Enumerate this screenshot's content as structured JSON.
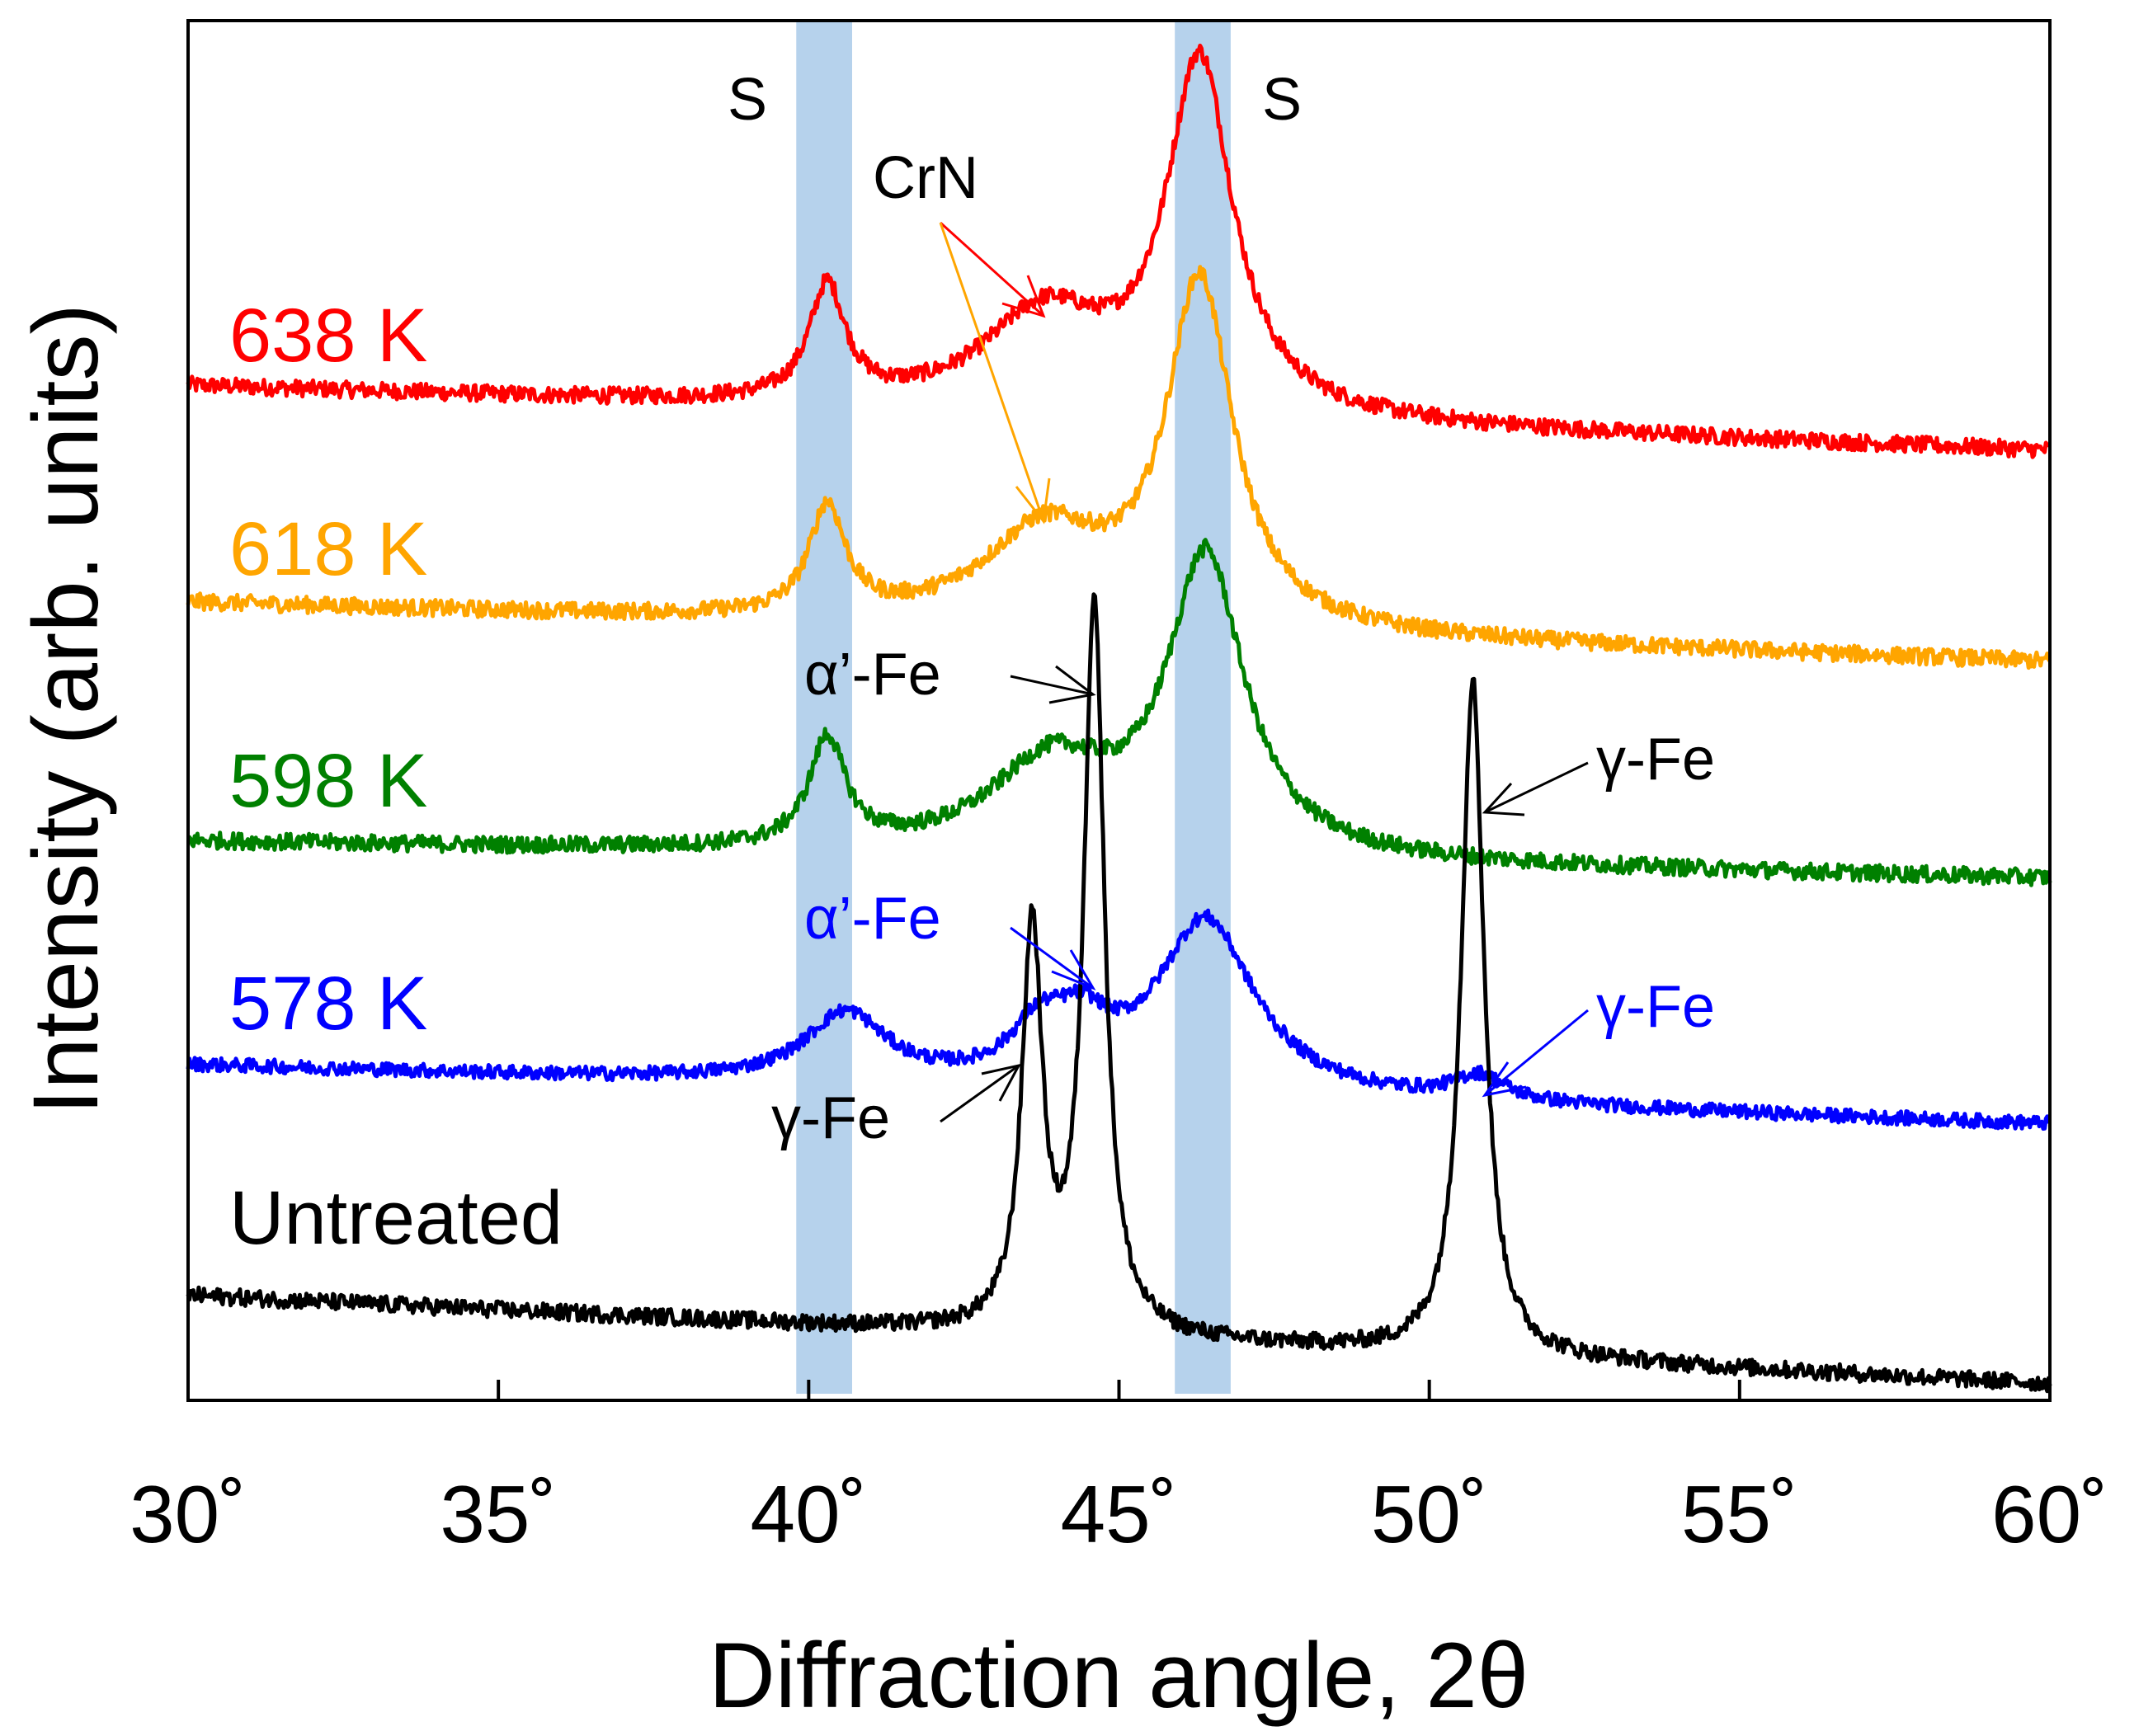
{
  "chart_data": {
    "type": "line",
    "title": "",
    "xlabel": "Diffraction angle, 2θ",
    "ylabel": "Intensity (arb. units)",
    "xlim": [
      30,
      60
    ],
    "ylim": [
      0,
      1
    ],
    "x_ticks": [
      30,
      35,
      40,
      45,
      50,
      55,
      60
    ],
    "x_tick_labels": [
      "30˚",
      "35˚",
      "40˚",
      "45˚",
      "50˚",
      "55˚",
      "60˚"
    ],
    "grid": false,
    "legend": "none",
    "bands": [
      {
        "name": "S",
        "xmin": 39.8,
        "xmax": 40.7,
        "color": "#9dc3e6"
      },
      {
        "name": "S",
        "xmin": 45.9,
        "xmax": 46.8,
        "color": "#9dc3e6"
      }
    ],
    "series": [
      {
        "name": "638 K",
        "color": "#ff0000",
        "base": 0.735,
        "end": 0.688,
        "noise": 0.006,
        "peaks": [
          {
            "x": 40.3,
            "h": 0.083,
            "w": 0.35
          },
          {
            "x": 43.8,
            "h": 0.07,
            "w": 1.2
          },
          {
            "x": 46.3,
            "h": 0.255,
            "w": 0.65
          }
        ]
      },
      {
        "name": "618 K",
        "color": "#ffa500",
        "base": 0.578,
        "end": 0.535,
        "noise": 0.006,
        "peaks": [
          {
            "x": 40.3,
            "h": 0.079,
            "w": 0.35
          },
          {
            "x": 43.8,
            "h": 0.068,
            "w": 1.2
          },
          {
            "x": 46.3,
            "h": 0.25,
            "w": 0.65
          }
        ]
      },
      {
        "name": "598 K",
        "color": "#008000",
        "base": 0.405,
        "end": 0.378,
        "noise": 0.006,
        "peaks": [
          {
            "x": 40.3,
            "h": 0.078,
            "w": 0.35
          },
          {
            "x": 43.9,
            "h": 0.065,
            "w": 1.2
          },
          {
            "x": 46.4,
            "h": 0.215,
            "w": 0.75
          }
        ]
      },
      {
        "name": "578 K",
        "color": "#0000ff",
        "base": 0.243,
        "end": 0.2,
        "noise": 0.005,
        "peaks": [
          {
            "x": 40.6,
            "h": 0.05,
            "w": 0.8
          },
          {
            "x": 43.7,
            "h": 0.035,
            "w": 0.55
          },
          {
            "x": 44.4,
            "h": 0.035,
            "w": 0.55
          },
          {
            "x": 46.4,
            "h": 0.126,
            "w": 0.95
          },
          {
            "x": 50.8,
            "h": 0.018,
            "w": 0.5
          }
        ]
      },
      {
        "name": "Untreated",
        "color": "#000000",
        "base": 0.076,
        "end": 0.012,
        "noise": 0.006,
        "peaks": [
          {
            "x": 43.6,
            "h": 0.29,
            "w": 0.2
          },
          {
            "x": 44.6,
            "h": 0.53,
            "w": 0.2
          },
          {
            "x": 50.7,
            "h": 0.49,
            "w": 0.22
          }
        ]
      }
    ],
    "annotations": {
      "s_left": "S",
      "s_right": "S",
      "crn": "CrN",
      "alpha_fe_black": "α’-Fe",
      "alpha_fe_blue": "α’-Fe",
      "gamma_fe_black_right": "γ-Fe",
      "gamma_fe_blue_right": "γ-Fe",
      "gamma_fe_black_left": "γ-Fe"
    }
  }
}
